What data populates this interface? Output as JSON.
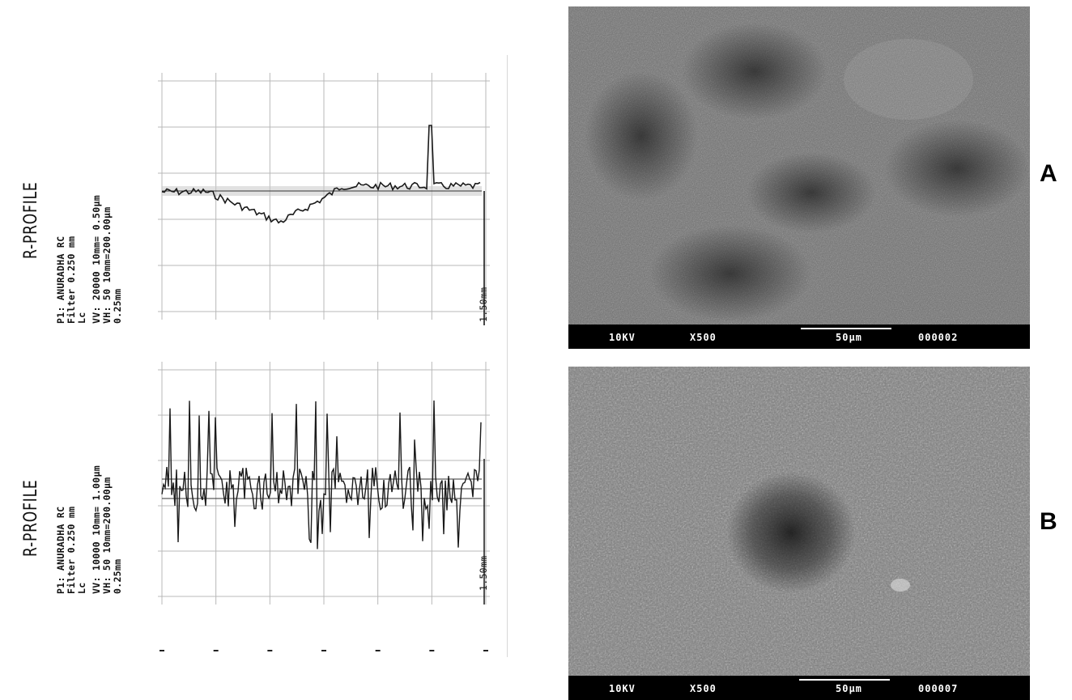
{
  "profiles": [
    {
      "id": "top",
      "title": "R-PROFILE",
      "line1": "P1: ANURADHA     RC",
      "line2": "Filter       0.250 mm",
      "line3": "Lc",
      "line4": "VV:  20000  10mm=  0.50µm",
      "line5": "VH:     50  10mm=200.00µm",
      "line6": "0.25mm",
      "end_label": "1.50mm"
    },
    {
      "id": "bottom",
      "title": "R-PROFILE",
      "line1": "P1: ANURADHA     RC",
      "line2": "Filter       0.250 mm",
      "line3": "Lc",
      "line4": "VV:  10000  10mm=  1.00µm",
      "line5": "VH:     50  10mm=200.00µm",
      "line6": "0.25mm",
      "end_label": "1.50mm"
    }
  ],
  "sem": [
    {
      "id": "A",
      "kv": "10KV",
      "mag": "X500",
      "scale": "50µm",
      "number": "000002",
      "label": "A"
    },
    {
      "id": "B",
      "kv": "10KV",
      "mag": "X500",
      "scale": "50µm",
      "number": "000007",
      "label": "B"
    }
  ],
  "colors": {
    "trace": "#1a1a1a",
    "grid": "#b8b8b8",
    "sem_bar": "#000000",
    "sem_text": "#ffffff"
  }
}
